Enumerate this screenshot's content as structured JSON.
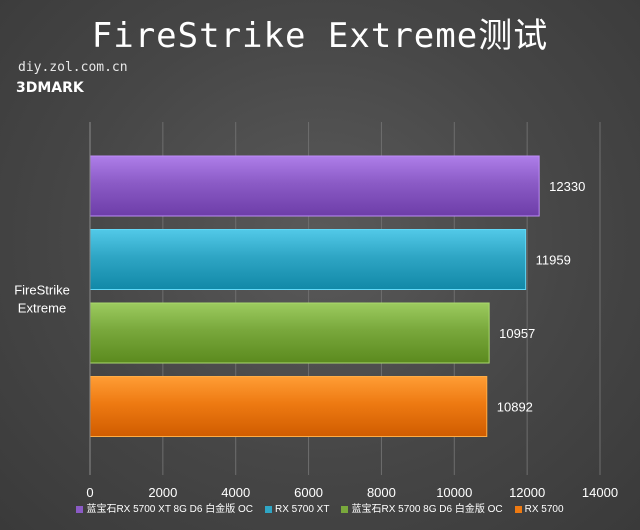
{
  "header": {
    "title": "FireStrike Extreme测试",
    "watermark": "diy.zol.com.cn",
    "brand": "3DMARK"
  },
  "colors": {
    "series": [
      "#8B5BC6",
      "#2FA6C5",
      "#79A83C",
      "#EE7A12"
    ],
    "gridline": "#6e6e6e"
  },
  "chart_data": {
    "type": "bar",
    "orientation": "horizontal",
    "title": "FireStrike Extreme测试",
    "categories": [
      "FireStrike\nExtreme"
    ],
    "category_label_lines": [
      "FireStrike",
      "Extreme"
    ],
    "xlim": [
      0,
      14000
    ],
    "xticks": [
      0,
      2000,
      4000,
      6000,
      8000,
      10000,
      12000,
      14000
    ],
    "grid": true,
    "legend_position": "bottom",
    "series": [
      {
        "name": "蓝宝石RX 5700 XT 8G D6 白金版 OC",
        "values": [
          12330
        ]
      },
      {
        "name": "RX 5700 XT",
        "values": [
          11959
        ]
      },
      {
        "name": "蓝宝石RX 5700  8G D6 白金版 OC",
        "values": [
          10957
        ]
      },
      {
        "name": "RX 5700",
        "values": [
          10892
        ]
      }
    ]
  }
}
